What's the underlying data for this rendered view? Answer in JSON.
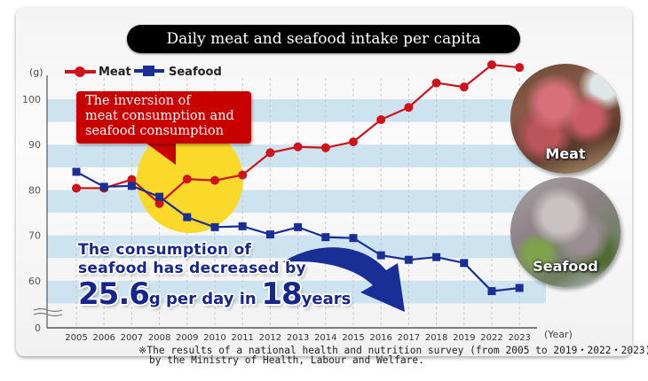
{
  "chart_data": {
    "type": "line",
    "title": "Daily meat and seafood intake per capita",
    "xlabel": "(Year)",
    "ylabel": "(g)",
    "y_ticks": [
      0,
      60,
      70,
      80,
      90,
      100
    ],
    "y_axis_break": "between 0 and 60",
    "ylim": [
      55,
      110
    ],
    "grid": "horizontal alternating light-blue bands, vertical dashed lines",
    "legend_position": "top-left",
    "categories": [
      "2005",
      "2006",
      "2007",
      "2008",
      "2009",
      "2010",
      "2011",
      "2012",
      "2013",
      "2014",
      "2015",
      "2016",
      "2017",
      "2018",
      "2019",
      "2022",
      "2023"
    ],
    "series": [
      {
        "name": "Meat",
        "color": "#d0121b",
        "marker": "circle",
        "values": [
          80.4,
          80.4,
          82.3,
          77.0,
          82.4,
          82.1,
          83.3,
          88.2,
          89.5,
          89.3,
          90.6,
          95.5,
          98.2,
          103.6,
          102.7,
          107.6,
          107.0
        ]
      },
      {
        "name": "Seafood",
        "color": "#1a2f95",
        "marker": "square",
        "values": [
          84.0,
          80.7,
          80.9,
          78.5,
          74.0,
          71.8,
          72.0,
          70.2,
          71.8,
          69.6,
          69.4,
          65.6,
          64.6,
          65.2,
          63.9,
          57.7,
          58.4
        ]
      }
    ],
    "annotations": {
      "callout": [
        "The inversion of",
        "meat consumption and",
        "seafood consumption"
      ],
      "highlight": "yellow circle around 2007–2010 crossover",
      "decrease_text": {
        "line1": "The consumption of",
        "line2": "seafood has decreased by",
        "amount": "25.6",
        "unit_text": "g per day in",
        "years": "18",
        "years_suffix": "years"
      },
      "arrow": "large downward-curving navy arrow"
    }
  },
  "images": {
    "meat_label": "Meat",
    "seafood_label": "Seafood"
  },
  "footnote": {
    "line1": "※The results of a national health and nutrition survey (from 2005 to 2019・2022・2023)",
    "line2": "by the Ministry of Health, Labour and Welfare."
  },
  "colors": {
    "meat": "#d0121b",
    "seafood": "#1a2f95",
    "band": "#cde3ef",
    "highlight": "#fbd92a",
    "callout_bg": "#c80000",
    "title_bg": "#000000"
  }
}
